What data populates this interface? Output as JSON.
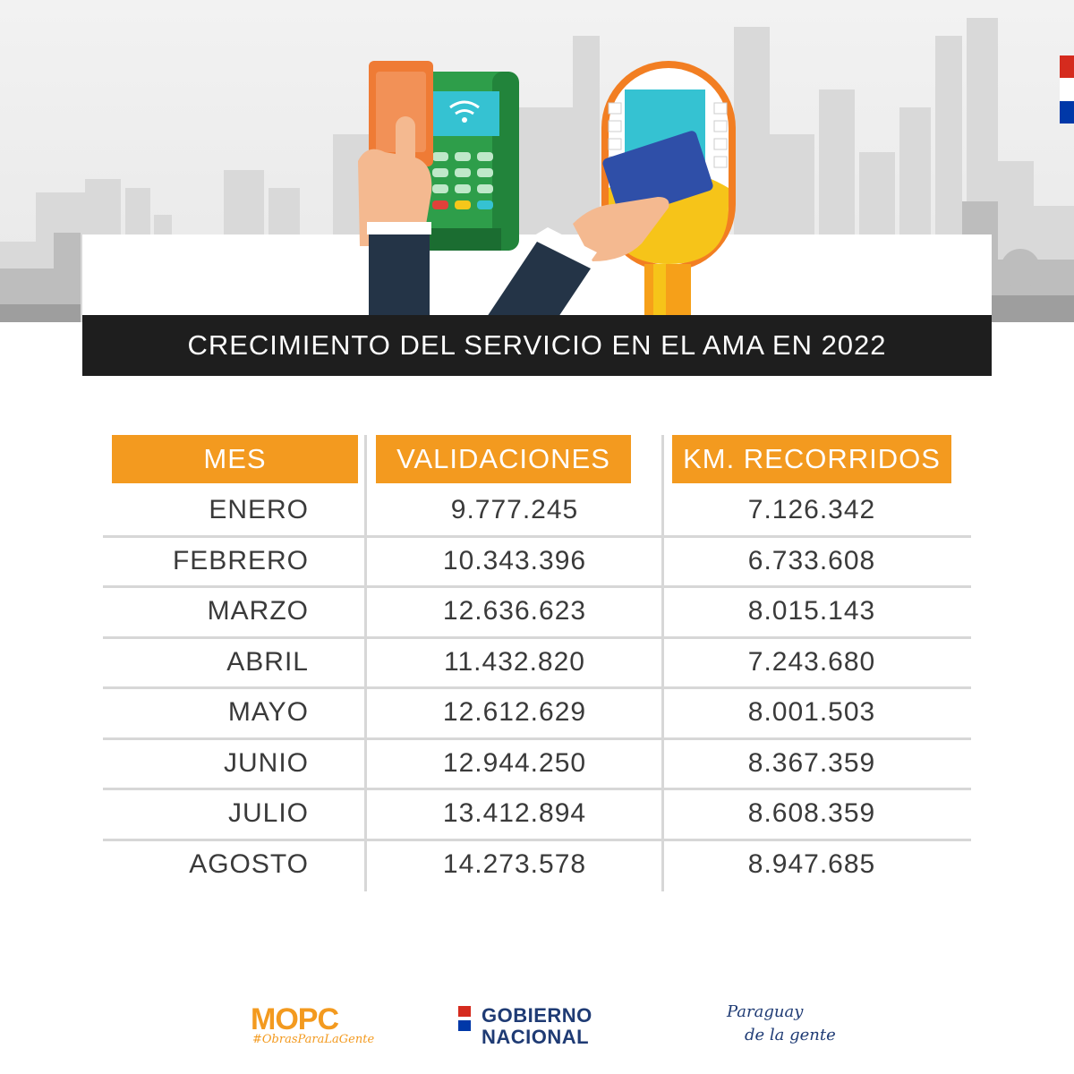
{
  "title": "CRECIMIENTO DEL SERVICIO EN EL AMA EN 2022",
  "colors": {
    "accent": "#f39a1f",
    "title_bar": "#1e1e1e",
    "brand_blue": "#1f3b74",
    "flag_red": "#d52b1e",
    "flag_blue": "#0038a8"
  },
  "chart_data": {
    "type": "table",
    "title": "CRECIMIENTO DEL SERVICIO EN EL AMA EN 2022",
    "columns": [
      "MES",
      "VALIDACIONES",
      "KM. RECORRIDOS"
    ],
    "rows": [
      [
        "ENERO",
        "9.777.245",
        "7.126.342"
      ],
      [
        "FEBRERO",
        "10.343.396",
        "6.733.608"
      ],
      [
        "MARZO",
        "12.636.623",
        "8.015.143"
      ],
      [
        "ABRIL",
        "11.432.820",
        "7.243.680"
      ],
      [
        "MAYO",
        "12.612.629",
        "8.001.503"
      ],
      [
        "JUNIO",
        "12.944.250",
        "8.367.359"
      ],
      [
        "JULIO",
        "13.412.894",
        "8.608.359"
      ],
      [
        "AGOSTO",
        "14.273.578",
        "8.947.685"
      ]
    ]
  },
  "footer": {
    "mopc": "MOPC",
    "mopc_tag": "#ObrasParaLaGente",
    "gobierno_line1": "GOBIERNO",
    "gobierno_line2": "NACIONAL",
    "paraguay_line1": "Paraguay",
    "paraguay_line2": "de la gente"
  }
}
